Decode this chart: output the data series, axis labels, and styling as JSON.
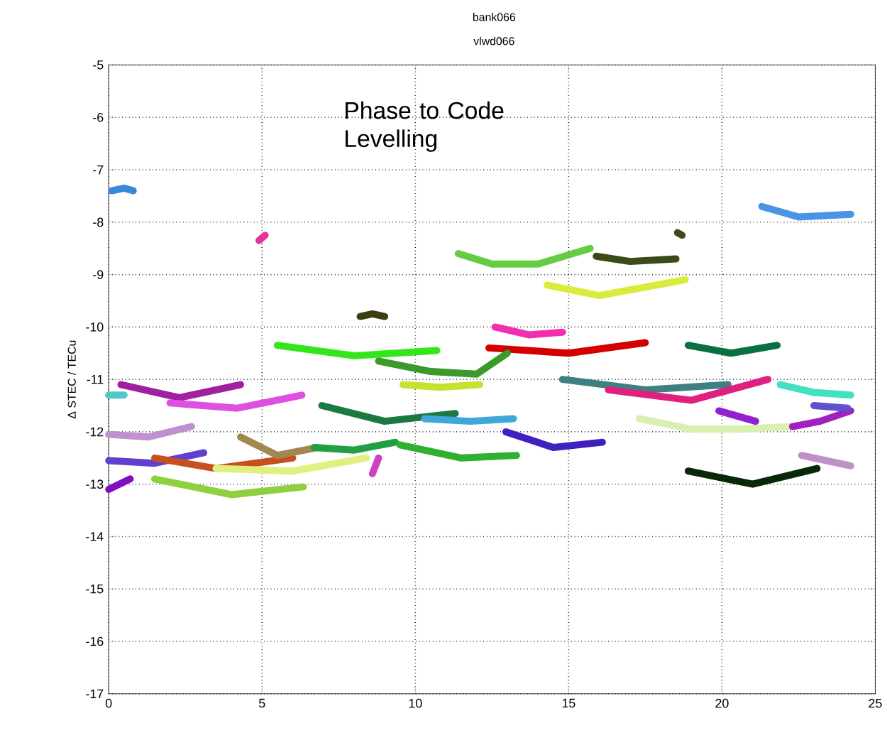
{
  "chart_data": {
    "type": "line",
    "title": "bank066",
    "subtitle": "vlwd066",
    "ylabel": "Δ STEC / TECu",
    "annotations": [
      "Phase to Code Levelling"
    ],
    "xlim": [
      0,
      25
    ],
    "ylim": [
      -17,
      -5
    ],
    "xticks": [
      0,
      5,
      10,
      15,
      20,
      25
    ],
    "yticks": [
      -17,
      -16,
      -15,
      -14,
      -13,
      -12,
      -11,
      -10,
      -9,
      -8,
      -7,
      -6,
      -5
    ],
    "grid": true,
    "marker": "none",
    "line_style": "solid",
    "series": [
      {
        "color": "#3a86d8",
        "x": [
          0.1,
          0.5,
          0.8
        ],
        "values": [
          -7.4,
          -7.35,
          -7.4
        ]
      },
      {
        "color": "#e8339a",
        "x": [
          4.9,
          5.1
        ],
        "values": [
          -8.35,
          -8.25
        ]
      },
      {
        "color": "#66cc44",
        "x": [
          11.4,
          12.5,
          14,
          15.7
        ],
        "values": [
          -8.6,
          -8.8,
          -8.8,
          -8.5
        ]
      },
      {
        "color": "#3d3d12",
        "x": [
          8.2,
          8.6,
          9.0
        ],
        "values": [
          -9.8,
          -9.75,
          -9.8
        ]
      },
      {
        "color": "#3b4a16",
        "x": [
          15.9,
          17,
          18.5
        ],
        "values": [
          -8.65,
          -8.75,
          -8.7
        ]
      },
      {
        "color": "#3b4a16",
        "x": [
          18.55,
          18.7
        ],
        "values": [
          -8.2,
          -8.25
        ]
      },
      {
        "color": "#d8ec3c",
        "x": [
          14.3,
          16,
          18.8
        ],
        "values": [
          -9.2,
          -9.4,
          -9.1
        ]
      },
      {
        "color": "#4a94e6",
        "x": [
          21.3,
          22.5,
          24.2
        ],
        "values": [
          -7.7,
          -7.9,
          -7.85
        ]
      },
      {
        "color": "#33e61a",
        "x": [
          5.5,
          8,
          10.7
        ],
        "values": [
          -10.35,
          -10.55,
          -10.45
        ]
      },
      {
        "color": "#f030b0",
        "x": [
          12.6,
          13.7,
          14.8
        ],
        "values": [
          -10.0,
          -10.15,
          -10.1
        ]
      },
      {
        "color": "#d40000",
        "x": [
          12.4,
          15,
          17.5
        ],
        "values": [
          -10.4,
          -10.5,
          -10.3
        ]
      },
      {
        "color": "#0a7040",
        "x": [
          18.9,
          20.3,
          21.8
        ],
        "values": [
          -10.35,
          -10.5,
          -10.35
        ]
      },
      {
        "color": "#3a9a2a",
        "x": [
          8.8,
          10.5,
          12,
          13
        ],
        "values": [
          -10.65,
          -10.85,
          -10.9,
          -10.5
        ]
      },
      {
        "color": "#c8e030",
        "x": [
          9.6,
          10.8,
          12.1
        ],
        "values": [
          -11.1,
          -11.15,
          -11.1
        ]
      },
      {
        "color": "#3f8080",
        "x": [
          14.8,
          17.5,
          20.2
        ],
        "values": [
          -11.0,
          -11.2,
          -11.1
        ]
      },
      {
        "color": "#e02080",
        "x": [
          16.3,
          19,
          21.5
        ],
        "values": [
          -11.2,
          -11.4,
          -11.0
        ]
      },
      {
        "color": "#40e0c0",
        "x": [
          21.9,
          23,
          24.2
        ],
        "values": [
          -11.1,
          -11.25,
          -11.3
        ]
      },
      {
        "color": "#50c8c8",
        "x": [
          0,
          0.5
        ],
        "values": [
          -11.3,
          -11.3
        ]
      },
      {
        "color": "#a020a0",
        "x": [
          0.4,
          2.3,
          4.3
        ],
        "values": [
          -11.1,
          -11.35,
          -11.1
        ]
      },
      {
        "color": "#e050e0",
        "x": [
          2.0,
          4.2,
          6.3
        ],
        "values": [
          -11.45,
          -11.55,
          -11.3
        ]
      },
      {
        "color": "#1a7a40",
        "x": [
          6.95,
          9,
          11.3
        ],
        "values": [
          -11.5,
          -11.8,
          -11.65
        ]
      },
      {
        "color": "#40a8d8",
        "x": [
          10.3,
          11.8,
          13.2
        ],
        "values": [
          -11.75,
          -11.8,
          -11.75
        ]
      },
      {
        "color": "#4020c0",
        "x": [
          12.95,
          14.5,
          16.1
        ],
        "values": [
          -12.0,
          -12.3,
          -12.2
        ]
      },
      {
        "color": "#d8f0b0",
        "x": [
          17.3,
          19,
          20.5,
          22.3
        ],
        "values": [
          -11.75,
          -11.95,
          -11.95,
          -11.9
        ]
      },
      {
        "color": "#9020d0",
        "x": [
          19.9,
          21.1
        ],
        "values": [
          -11.6,
          -11.8
        ]
      },
      {
        "color": "#a020c0",
        "x": [
          22.3,
          23.2,
          24.2
        ],
        "values": [
          -11.9,
          -11.8,
          -11.6
        ]
      },
      {
        "color": "#6050d0",
        "x": [
          23.0,
          24.1
        ],
        "values": [
          -11.5,
          -11.55
        ]
      },
      {
        "color": "#c090d0",
        "x": [
          0,
          1.3,
          2.7
        ],
        "values": [
          -12.05,
          -12.1,
          -11.9
        ]
      },
      {
        "color": "#6040d0",
        "x": [
          0,
          1.5,
          3.1
        ],
        "values": [
          -12.55,
          -12.6,
          -12.4
        ]
      },
      {
        "color": "#c85020",
        "x": [
          1.5,
          3.5,
          6.0
        ],
        "values": [
          -12.5,
          -12.7,
          -12.5
        ]
      },
      {
        "color": "#a08850",
        "x": [
          4.3,
          5.5,
          6.8
        ],
        "values": [
          -12.1,
          -12.45,
          -12.3
        ]
      },
      {
        "color": "#20a040",
        "x": [
          6.7,
          8,
          9.35
        ],
        "values": [
          -12.3,
          -12.35,
          -12.2
        ]
      },
      {
        "color": "#e0f080",
        "x": [
          3.5,
          6,
          8.4
        ],
        "values": [
          -12.7,
          -12.75,
          -12.5
        ]
      },
      {
        "color": "#d040c0",
        "x": [
          8.6,
          8.8
        ],
        "values": [
          -12.8,
          -12.5
        ]
      },
      {
        "color": "#30b030",
        "x": [
          9.5,
          11.5,
          13.3
        ],
        "values": [
          -12.25,
          -12.5,
          -12.45
        ]
      },
      {
        "color": "#90d040",
        "x": [
          1.5,
          4,
          6.35
        ],
        "values": [
          -12.9,
          -13.2,
          -13.05
        ]
      },
      {
        "color": "#8010c0",
        "x": [
          0,
          0.7
        ],
        "values": [
          -13.1,
          -12.9
        ]
      },
      {
        "color": "#082808",
        "x": [
          18.9,
          21,
          23.1
        ],
        "values": [
          -12.75,
          -13.0,
          -12.7
        ]
      },
      {
        "color": "#c090c8",
        "x": [
          22.6,
          24.2
        ],
        "values": [
          -12.45,
          -12.65
        ]
      }
    ]
  }
}
